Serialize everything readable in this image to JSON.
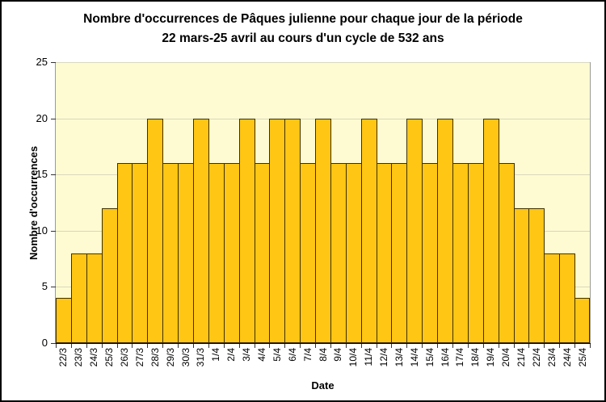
{
  "window": {
    "background": "#FFFFFF",
    "frame_border_color": "#000000"
  },
  "chart_data": {
    "type": "bar",
    "title": "Nombre d'occurrences de Pâques julienne pour chaque jour de la période",
    "subtitle": "22 mars-25 avril au cours d'un cycle de 532 ans",
    "xlabel": "Date",
    "ylabel": "Nombre d'occurrences",
    "ylim": [
      0,
      25
    ],
    "yticks": [
      0,
      5,
      10,
      15,
      20,
      25
    ],
    "grid": "horizontal",
    "legend_position": "none",
    "x_tick_label_rotation_deg": 90,
    "categories": [
      "22/3",
      "23/3",
      "24/3",
      "25/3",
      "26/3",
      "27/3",
      "28/3",
      "29/3",
      "30/3",
      "31/3",
      "1/4",
      "2/4",
      "3/4",
      "4/4",
      "5/4",
      "6/4",
      "7/4",
      "8/4",
      "9/4",
      "10/4",
      "11/4",
      "12/4",
      "13/4",
      "14/4",
      "15/4",
      "16/4",
      "17/4",
      "18/4",
      "19/4",
      "20/4",
      "21/4",
      "22/4",
      "23/4",
      "24/4",
      "25/4"
    ],
    "values": [
      4,
      8,
      8,
      12,
      16,
      16,
      20,
      16,
      16,
      20,
      16,
      16,
      20,
      16,
      20,
      20,
      16,
      20,
      16,
      16,
      20,
      16,
      16,
      20,
      16,
      20,
      16,
      16,
      20,
      16,
      12,
      12,
      8,
      8,
      4
    ],
    "total_occurrences": 532,
    "colors": {
      "bar_fill": "#FFC614",
      "bar_border": "#3F3000",
      "plot_background": "#FEFBD2",
      "gridline": "#D9D7BC",
      "plot_edge": "#9A9A9A",
      "axis": "#000000",
      "text": "#000000"
    }
  }
}
